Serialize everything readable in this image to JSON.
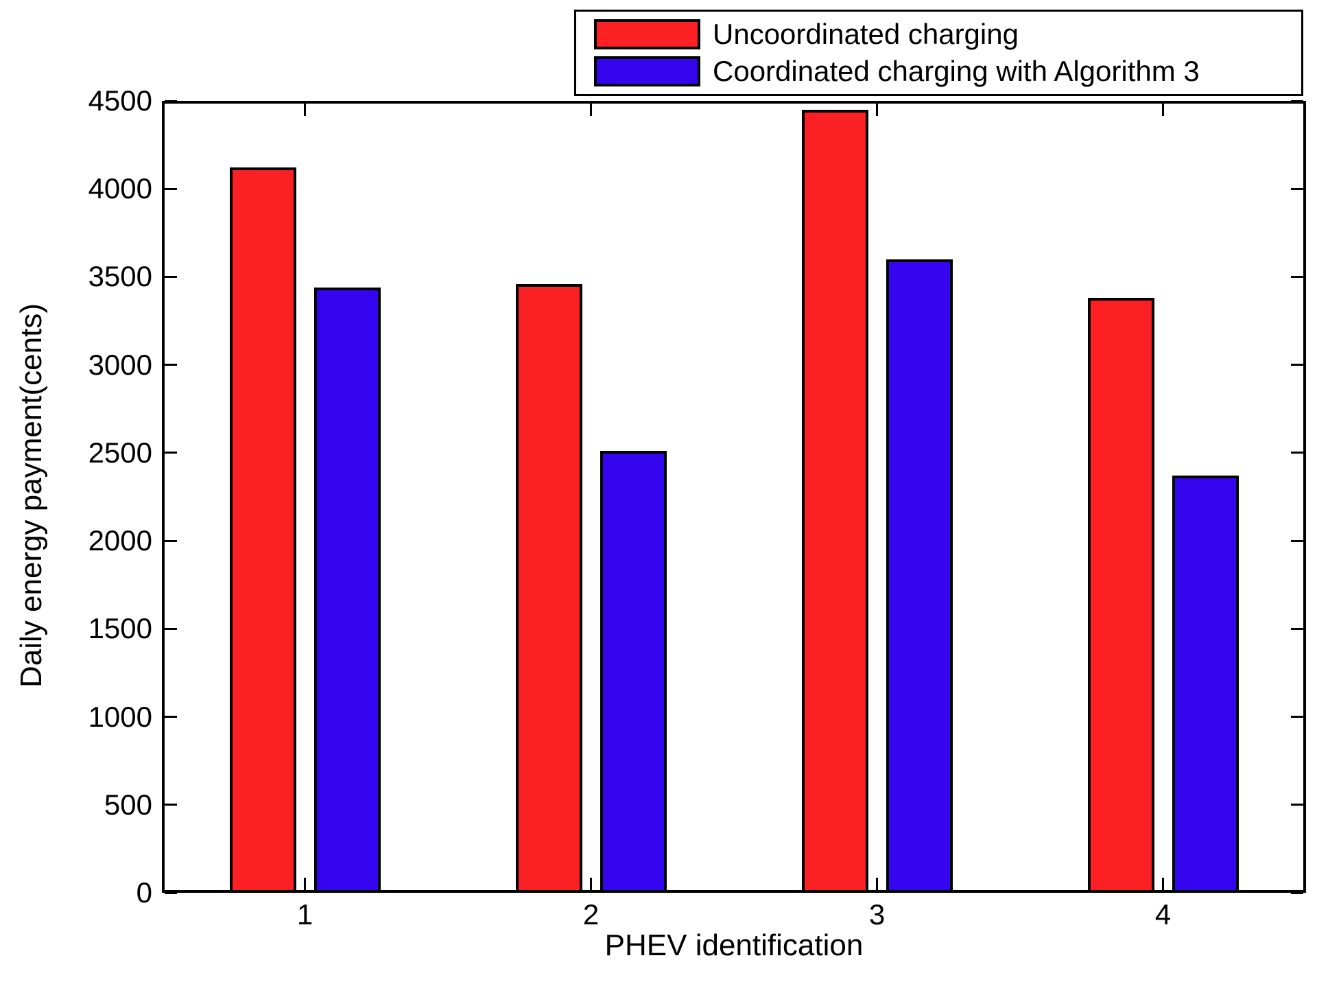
{
  "figure": {
    "background": "#ffffff",
    "text_color": "#000000"
  },
  "chart_data": {
    "type": "bar",
    "title": "",
    "xlabel": "PHEV identification",
    "ylabel": "Daily energy payment(cents)",
    "categories": [
      "1",
      "2",
      "3",
      "4"
    ],
    "series": [
      {
        "name": "Uncoordinated charging",
        "color": "#fb2024",
        "values": [
          4120,
          3460,
          4450,
          3380
        ]
      },
      {
        "name": "Coordinated charging with Algorithm 3",
        "color": "#3505f0",
        "values": [
          3440,
          2510,
          3600,
          2370
        ]
      }
    ],
    "ylim": [
      0,
      4500
    ],
    "yticks": [
      0,
      500,
      1000,
      1500,
      2000,
      2500,
      3000,
      3500,
      4000,
      4500
    ],
    "xlim": [
      0.5,
      4.5
    ],
    "grid": false,
    "legend_position": "top-right",
    "bar_edge_color": "#000000",
    "axis_color": "#000000",
    "tick_direction": "in"
  }
}
